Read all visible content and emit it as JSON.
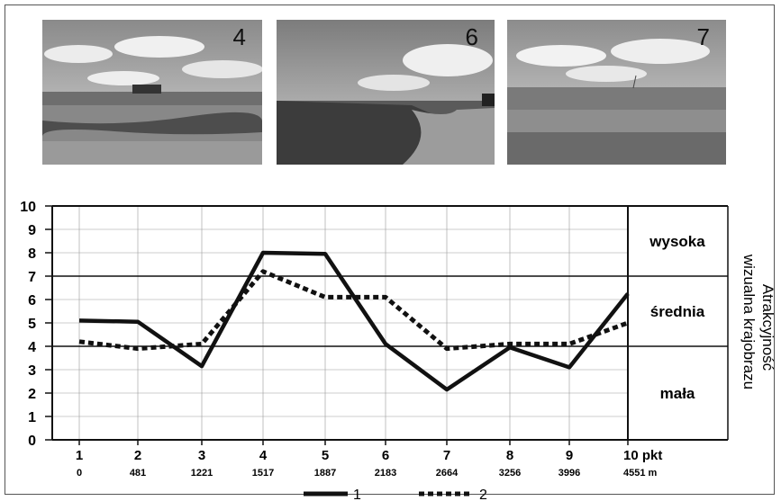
{
  "photos": [
    {
      "number": "4"
    },
    {
      "number": "6"
    },
    {
      "number": "7"
    }
  ],
  "chart_data": {
    "type": "line",
    "x": [
      "1",
      "2",
      "3",
      "4",
      "5",
      "6",
      "7",
      "8",
      "9",
      "10"
    ],
    "x_unit": "pkt",
    "distances": [
      "0",
      "481",
      "1221",
      "1517",
      "1887",
      "2183",
      "2664",
      "3256",
      "3996",
      "4551"
    ],
    "distance_unit": "m",
    "series": [
      {
        "name": "1",
        "values": [
          5.1,
          5.05,
          3.15,
          8.0,
          7.95,
          4.1,
          2.15,
          3.95,
          3.1,
          6.25
        ],
        "style": "solid"
      },
      {
        "name": "2",
        "values": [
          4.2,
          3.9,
          4.1,
          7.2,
          6.1,
          6.1,
          3.9,
          4.1,
          4.1,
          5.0
        ],
        "style": "dotted"
      }
    ],
    "ylim": [
      0,
      10
    ],
    "yticks": [
      "0",
      "1",
      "2",
      "3",
      "4",
      "5",
      "6",
      "7",
      "8",
      "9",
      "10"
    ],
    "zones": [
      {
        "label": "wysoka",
        "from": 7,
        "to": 10
      },
      {
        "label": "średnia",
        "from": 4,
        "to": 7
      },
      {
        "label": "mała",
        "from": 0,
        "to": 4
      }
    ],
    "zone_axis_label": [
      "Atrakcyjność",
      "wizualna krajobrazu"
    ],
    "grid": true,
    "legend_position": "bottom-center"
  },
  "colors": {
    "line": "#111111",
    "grid": "#999999",
    "frame": "#555555"
  }
}
